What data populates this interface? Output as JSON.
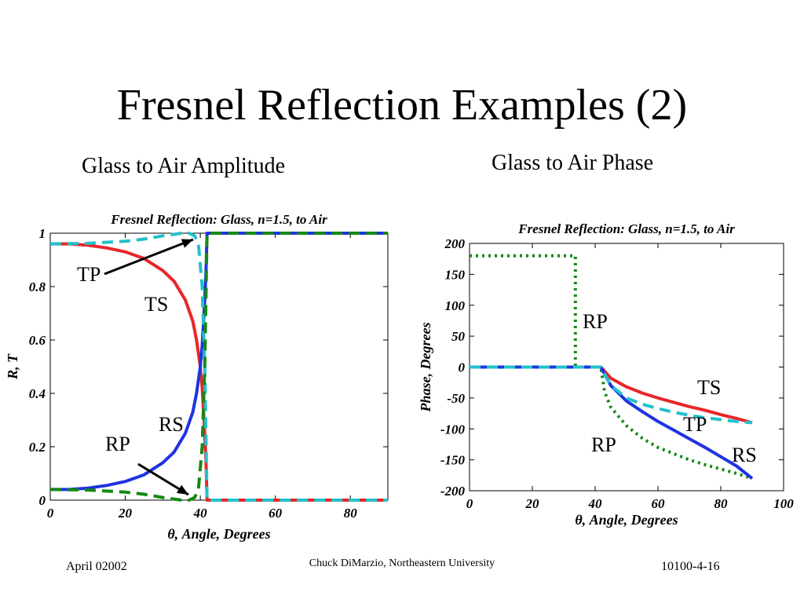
{
  "slide": {
    "title": "Fresnel Reflection Examples (2)",
    "subtitle_left": "Glass to Air Amplitude",
    "subtitle_right": "Glass to Air Phase",
    "footer_left": "April 02002",
    "footer_center": "Chuck DiMarzio, Northeastern University",
    "footer_right": "10100-4-16"
  },
  "colors": {
    "TS": "#e8262a",
    "RS": "#1f33e0",
    "TP": "#22c1cc",
    "RP": "#148a14"
  },
  "chart_data": [
    {
      "type": "line",
      "title": "Fresnel Reflection: Glass, n=1.5, to Air",
      "xlabel": "θ, Angle, Degrees",
      "ylabel": "R, T",
      "xlim": [
        0,
        90
      ],
      "ylim": [
        0,
        1
      ],
      "xticks": [
        0,
        20,
        40,
        60,
        80
      ],
      "yticks": [
        0,
        0.2,
        0.4,
        0.6,
        0.8,
        1
      ],
      "ytick_labels": [
        "0",
        "0.2",
        "0.4",
        "0.6",
        "0.8",
        "1"
      ],
      "series": [
        {
          "name": "TS",
          "style": "solid",
          "x": [
            0,
            5,
            10,
            15,
            20,
            25,
            30,
            33,
            36,
            38,
            39,
            40,
            40.5,
            41,
            41.5,
            41.8,
            45,
            60,
            75,
            90
          ],
          "y": [
            0.96,
            0.96,
            0.955,
            0.945,
            0.93,
            0.905,
            0.86,
            0.82,
            0.75,
            0.67,
            0.6,
            0.5,
            0.42,
            0.3,
            0.15,
            0.0,
            0.0,
            0.0,
            0.0,
            0.0
          ]
        },
        {
          "name": "RS",
          "style": "solid",
          "x": [
            0,
            5,
            10,
            15,
            20,
            25,
            30,
            33,
            36,
            38,
            39,
            40,
            40.5,
            41,
            41.5,
            41.8,
            45,
            60,
            75,
            90
          ],
          "y": [
            0.04,
            0.04,
            0.045,
            0.055,
            0.07,
            0.095,
            0.14,
            0.18,
            0.25,
            0.33,
            0.4,
            0.5,
            0.58,
            0.7,
            0.85,
            1.0,
            1.0,
            1.0,
            1.0,
            1.0
          ]
        },
        {
          "name": "TP",
          "style": "dashed",
          "x": [
            0,
            10,
            20,
            25,
            30,
            33,
            35,
            37,
            38.5,
            39.5,
            40.5,
            41.2,
            41.8,
            45,
            60,
            75,
            90
          ],
          "y": [
            0.96,
            0.962,
            0.97,
            0.978,
            0.99,
            0.996,
            1.0,
            1.0,
            0.99,
            0.96,
            0.8,
            0.5,
            0.0,
            0.0,
            0.0,
            0.0,
            0.0
          ]
        },
        {
          "name": "RP",
          "style": "dashed",
          "x": [
            0,
            10,
            20,
            25,
            30,
            33,
            35,
            37,
            38.5,
            39.5,
            40.5,
            41.2,
            41.8,
            45,
            60,
            75,
            90
          ],
          "y": [
            0.04,
            0.038,
            0.03,
            0.022,
            0.01,
            0.004,
            0.0,
            0.0,
            0.01,
            0.04,
            0.2,
            0.5,
            1.0,
            1.0,
            1.0,
            1.0,
            1.0
          ]
        }
      ],
      "annotations": [
        "TP",
        "TS",
        "RS",
        "RP"
      ]
    },
    {
      "type": "line",
      "title": "Fresnel Reflection: Glass, n=1.5, to Air",
      "xlabel": "θ, Angle, Degrees",
      "ylabel": "Phase, Degrees",
      "xlim": [
        0,
        100
      ],
      "ylim": [
        -200,
        200
      ],
      "xticks": [
        0,
        20,
        40,
        60,
        80,
        100
      ],
      "yticks": [
        -200,
        -150,
        -100,
        -50,
        0,
        50,
        100,
        150,
        200
      ],
      "ytick_labels": [
        "-200",
        "-150",
        "-100",
        "-50",
        "0",
        "50",
        "100",
        "150",
        "200"
      ],
      "series": [
        {
          "name": "RP",
          "style": "dotted",
          "x": [
            0,
            33.7,
            33.7,
            41.8,
            43,
            45,
            50,
            55,
            60,
            65,
            70,
            75,
            80,
            85,
            90
          ],
          "y": [
            180,
            180,
            0,
            0,
            -40,
            -65,
            -95,
            -115,
            -130,
            -140,
            -150,
            -158,
            -165,
            -172,
            -180
          ]
        },
        {
          "name": "TS",
          "style": "solid",
          "x": [
            0,
            41.8,
            45,
            50,
            55,
            60,
            65,
            70,
            75,
            80,
            85,
            90
          ],
          "y": [
            0,
            0,
            -18,
            -32,
            -42,
            -50,
            -57,
            -64,
            -70,
            -77,
            -83,
            -90
          ]
        },
        {
          "name": "RS",
          "style": "solid",
          "x": [
            0,
            41.8,
            45,
            50,
            55,
            60,
            65,
            70,
            75,
            80,
            85,
            90
          ],
          "y": [
            0,
            0,
            -30,
            -55,
            -72,
            -88,
            -102,
            -116,
            -130,
            -145,
            -160,
            -180
          ]
        },
        {
          "name": "TP",
          "style": "dashed",
          "x": [
            0,
            41.8,
            45,
            50,
            55,
            60,
            65,
            70,
            75,
            80,
            85,
            90
          ],
          "y": [
            0,
            0,
            -30,
            -50,
            -60,
            -67,
            -73,
            -78,
            -82,
            -85,
            -88,
            -90
          ]
        }
      ],
      "annotations": [
        "RP",
        "TS",
        "TP",
        "RP",
        "RS"
      ]
    }
  ]
}
